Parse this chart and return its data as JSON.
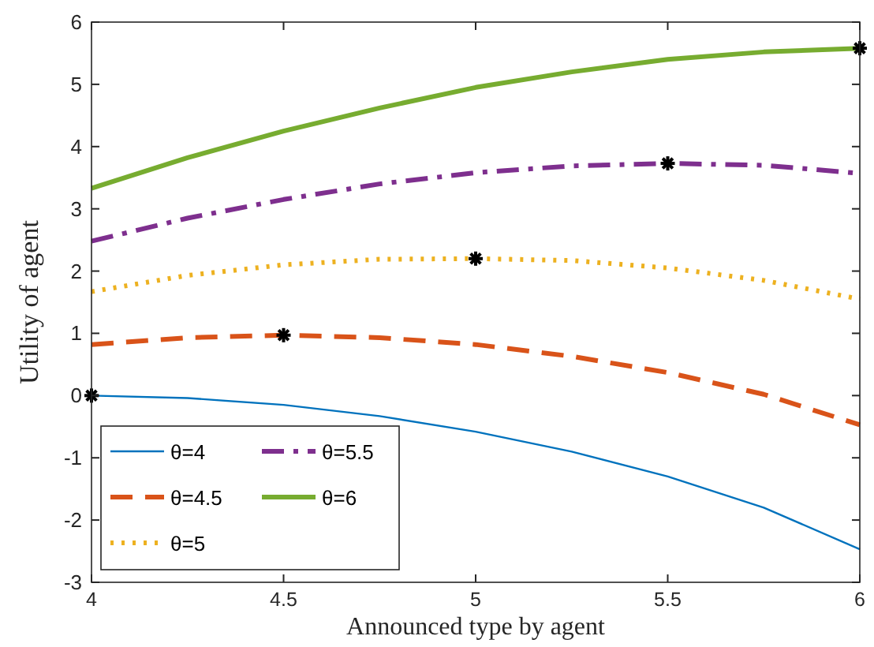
{
  "chart_data": {
    "type": "line",
    "xlabel": "Announced type by agent",
    "ylabel": "Utility of agent",
    "x": [
      4,
      4.25,
      4.5,
      4.75,
      5,
      5.25,
      5.5,
      5.75,
      6
    ],
    "xlim": [
      4,
      6
    ],
    "xticks": [
      4,
      4.5,
      5,
      5.5,
      6
    ],
    "ylim": [
      -3,
      6
    ],
    "yticks": [
      -3,
      -2,
      -1,
      0,
      1,
      2,
      3,
      4,
      5,
      6
    ],
    "grid": false,
    "legend": "bottom left",
    "marker": "none",
    "series": [
      {
        "name": "θ=4",
        "color": "#0072bd",
        "line_style": "solid",
        "values": [
          0,
          -0.04,
          -0.15,
          -0.33,
          -0.58,
          -0.9,
          -1.3,
          -1.8,
          -2.47
        ]
      },
      {
        "name": "θ=4.5",
        "color": "#d95319",
        "line_style": "dashed",
        "values": [
          0.82,
          0.93,
          0.97,
          0.93,
          0.82,
          0.63,
          0.37,
          0.02,
          -0.47
        ]
      },
      {
        "name": "θ=5",
        "color": "#edb120",
        "line_style": "dotted",
        "values": [
          1.67,
          1.93,
          2.1,
          2.19,
          2.2,
          2.17,
          2.05,
          1.85,
          1.55
        ]
      },
      {
        "name": "θ=5.5",
        "color": "#7e2f8e",
        "line_style": "dashdot",
        "values": [
          2.48,
          2.85,
          3.15,
          3.4,
          3.58,
          3.69,
          3.73,
          3.7,
          3.57
        ]
      },
      {
        "name": "θ=6",
        "color": "#77ac30",
        "line_style": "solid",
        "values": [
          3.33,
          3.82,
          4.25,
          4.62,
          4.95,
          5.2,
          5.4,
          5.52,
          5.58
        ]
      },
      {
        "type": "scatter",
        "marker": "cross",
        "color": "#000000",
        "x": [
          4,
          4.5,
          5,
          5.5,
          6
        ],
        "values": [
          0,
          0.97,
          2.2,
          3.73,
          5.58
        ]
      }
    ]
  }
}
